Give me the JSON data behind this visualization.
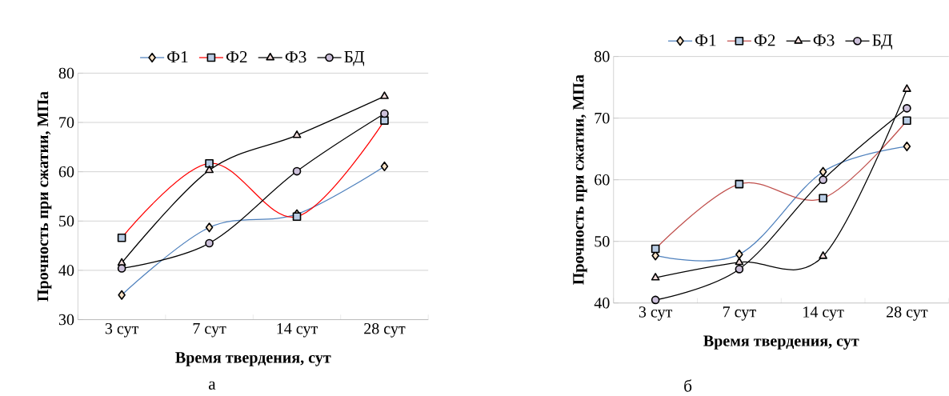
{
  "chart_data": [
    {
      "type": "line",
      "xlabel": "Время твердения, сут",
      "ylabel": "Прочность при сжатии, МПа",
      "categories": [
        "3 сут",
        "7 сут",
        "14 сут",
        "28 сут"
      ],
      "ylim": [
        30,
        80
      ],
      "yticks": [
        30,
        40,
        50,
        60,
        70,
        80
      ],
      "grid": "y",
      "legend": "top",
      "annotations": [
        "а"
      ],
      "series": [
        {
          "name": "Ф1",
          "color": "#4f81bd",
          "marker": "diamond",
          "values": [
            35.0,
            48.7,
            51.4,
            61.1
          ]
        },
        {
          "name": "Ф2",
          "color": "#ff0000",
          "marker": "square",
          "values": [
            46.6,
            61.7,
            50.9,
            70.4
          ]
        },
        {
          "name": "Ф3",
          "color": "#000000",
          "marker": "triangle",
          "values": [
            41.5,
            60.3,
            67.4,
            75.3
          ]
        },
        {
          "name": "БД",
          "color": "#000000",
          "marker": "circle",
          "values": [
            40.4,
            45.5,
            60.1,
            71.8
          ]
        }
      ]
    },
    {
      "type": "line",
      "xlabel": "Время твердения, сут",
      "ylabel": "Прочность при сжатии, МПа",
      "categories": [
        "3 сут",
        "7 сут",
        "14 сут",
        "28 сут"
      ],
      "ylim": [
        40,
        80
      ],
      "yticks": [
        40,
        50,
        60,
        70,
        80
      ],
      "grid": "y",
      "legend": "top",
      "annotations": [
        "б"
      ],
      "series": [
        {
          "name": "Ф1",
          "color": "#4f81bd",
          "marker": "diamond",
          "values": [
            47.7,
            47.9,
            61.3,
            65.4
          ]
        },
        {
          "name": "Ф2",
          "color": "#c0504d",
          "marker": "square",
          "values": [
            48.8,
            59.3,
            57.0,
            69.6
          ]
        },
        {
          "name": "Ф3",
          "color": "#000000",
          "marker": "triangle",
          "values": [
            44.1,
            46.6,
            47.6,
            74.7
          ]
        },
        {
          "name": "БД",
          "color": "#000000",
          "marker": "circle",
          "values": [
            40.5,
            45.5,
            60.0,
            71.6
          ]
        }
      ]
    }
  ]
}
